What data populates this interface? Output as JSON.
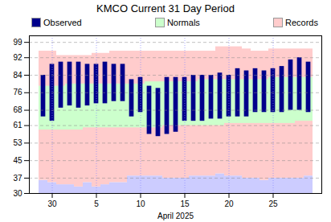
{
  "chart_data": {
    "type": "bar",
    "title": "KMCO Current 31 Day Period",
    "xlabel": "April 2025",
    "categories": [
      null,
      "30",
      null,
      null,
      null,
      null,
      "5",
      null,
      null,
      null,
      null,
      "10",
      null,
      null,
      null,
      null,
      "15",
      null,
      null,
      null,
      null,
      "20",
      null,
      null,
      null,
      null,
      "25",
      null,
      null,
      null,
      null
    ],
    "series": [
      {
        "color": "#ccccff",
        "values": [
          36,
          35,
          34,
          34,
          33,
          35,
          33,
          34,
          35,
          35,
          38,
          38,
          38,
          38,
          37,
          37,
          37,
          38,
          38,
          38,
          39,
          38,
          38,
          37,
          37,
          36,
          37,
          37,
          37,
          37,
          38
        ]
      },
      {
        "name": "Records",
        "color": "#ffcccc",
        "low": [
          36,
          35,
          34,
          34,
          33,
          35,
          33,
          34,
          35,
          35,
          38,
          38,
          38,
          38,
          37,
          37,
          37,
          38,
          38,
          38,
          39,
          38,
          38,
          37,
          37,
          36,
          37,
          37,
          37,
          37,
          38
        ],
        "high": [
          95,
          95,
          93,
          93,
          93,
          93,
          94,
          94,
          95,
          95,
          95,
          95,
          95,
          95,
          95,
          95,
          95,
          95,
          95,
          95,
          97,
          97,
          97,
          96,
          95,
          95,
          96,
          96,
          96,
          96,
          96
        ]
      },
      {
        "name": "Normals",
        "color": "#ccffcc",
        "low": [
          59,
          59,
          59,
          59,
          59,
          60,
          60,
          60,
          60,
          60,
          60,
          60,
          60,
          60,
          61,
          61,
          61,
          61,
          61,
          61,
          61,
          62,
          62,
          62,
          62,
          62,
          62,
          62,
          62,
          63,
          63
        ],
        "high": [
          79,
          79,
          79,
          80,
          80,
          80,
          80,
          80,
          80,
          80,
          80,
          80,
          81,
          81,
          81,
          81,
          81,
          81,
          82,
          82,
          82,
          82,
          82,
          82,
          82,
          82,
          83,
          83,
          83,
          83,
          83
        ]
      },
      {
        "name": "Observed",
        "color": "#00008b",
        "low": [
          65,
          63,
          69,
          70,
          69,
          70,
          71,
          71,
          72,
          72,
          65,
          67,
          57,
          56,
          57,
          58,
          63,
          63,
          63,
          64,
          64,
          65,
          65,
          65,
          67,
          67,
          67,
          67,
          68,
          68,
          67
        ],
        "high": [
          84,
          89,
          90,
          90,
          90,
          89,
          89,
          90,
          89,
          89,
          82,
          83,
          79,
          78,
          83,
          83,
          83,
          84,
          84,
          84,
          85,
          84,
          87,
          86,
          87,
          86,
          87,
          88,
          91,
          92,
          90
        ]
      }
    ],
    "ylim": [
      30,
      102
    ],
    "yticks": [
      30,
      37,
      45,
      53,
      61,
      68,
      76,
      84,
      92,
      99
    ],
    "grid": true,
    "legend": "top"
  }
}
